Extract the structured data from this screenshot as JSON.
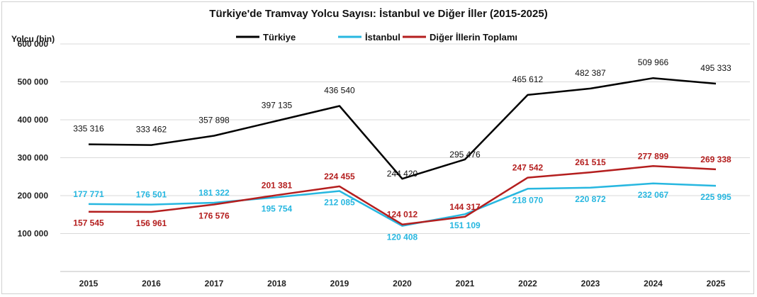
{
  "chart_data": {
    "type": "line",
    "title": "Türkiye'de Tramvay Yolcu Sayısı: İstanbul ve Diğer İller (2015-2025)",
    "ylabel": "Yolcu (bin)",
    "xlabel": "",
    "ylim": [
      0,
      600000
    ],
    "yticks": [
      100000,
      200000,
      300000,
      400000,
      500000,
      600000
    ],
    "ytick_labels": [
      "100 000",
      "200 000",
      "300 000",
      "400 000",
      "500 000",
      "600 000"
    ],
    "categories": [
      "2015",
      "2016",
      "2017",
      "2018",
      "2019",
      "2020",
      "2021",
      "2022",
      "2023",
      "2024",
      "2025"
    ],
    "grid": true,
    "legend_position": "top-center",
    "series": [
      {
        "name": "Türkiye",
        "color": "#000000",
        "values": [
          335316,
          333462,
          357898,
          397135,
          436540,
          244420,
          295476,
          465612,
          482387,
          509966,
          495333
        ],
        "labels": [
          "335 316",
          "333 462",
          "357 898",
          "397 135",
          "436 540",
          "244 420",
          "295 476",
          "465 612",
          "482 387",
          "509 966",
          "495 333"
        ]
      },
      {
        "name": "İstanbul",
        "color": "#27b7e0",
        "values": [
          177771,
          176501,
          181322,
          195754,
          212085,
          120408,
          151109,
          218070,
          220872,
          232067,
          225995
        ],
        "labels": [
          "177 771",
          "176 501",
          "181 322",
          "195 754",
          "212 085",
          "120 408",
          "151 109",
          "218 070",
          "220 872",
          "232 067",
          "225 995"
        ]
      },
      {
        "name": "Diğer İllerin Toplamı",
        "color": "#b41e1e",
        "values": [
          157545,
          156961,
          176576,
          201381,
          224455,
          124012,
          144317,
          247542,
          261515,
          277899,
          269338
        ],
        "labels": [
          "157 545",
          "156 961",
          "176 576",
          "201 381",
          "224 455",
          "124 012",
          "144 317",
          "247 542",
          "261 515",
          "277 899",
          "269 338"
        ]
      }
    ]
  }
}
